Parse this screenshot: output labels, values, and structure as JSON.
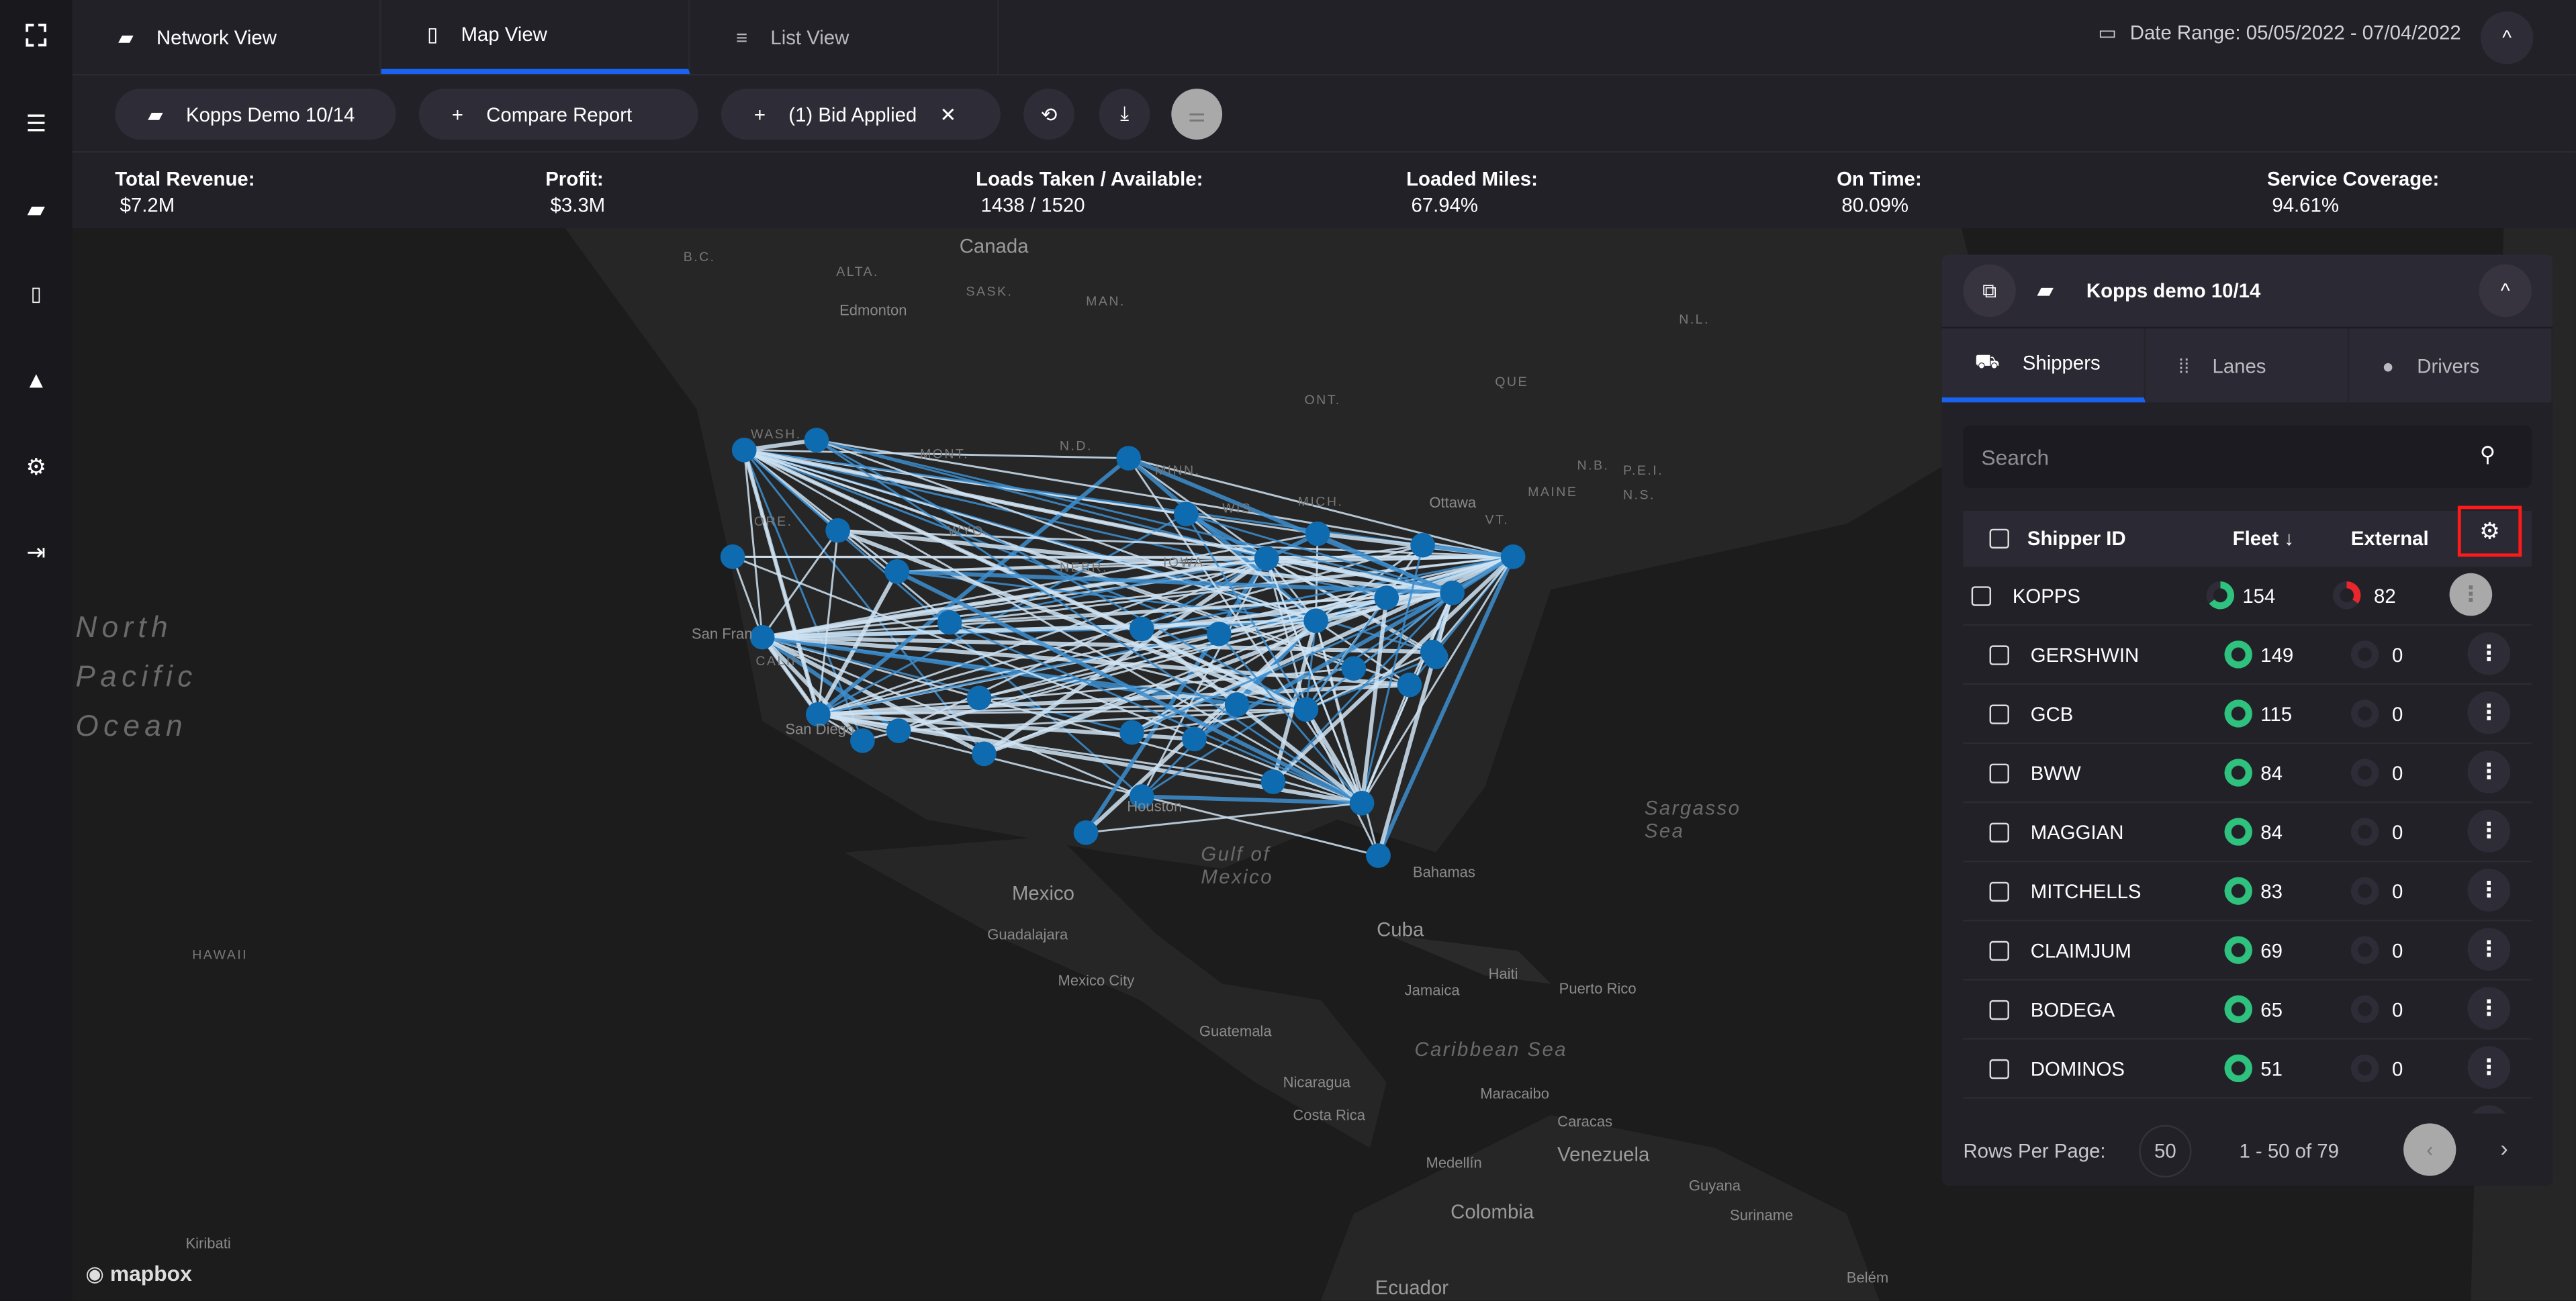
{
  "sidebar": {
    "items": [
      {
        "icon": "logo-icon"
      },
      {
        "icon": "menu-icon"
      },
      {
        "icon": "folder-icon"
      },
      {
        "icon": "document-dollar-icon"
      },
      {
        "icon": "warning-triangle-icon"
      },
      {
        "icon": "gear-icon"
      },
      {
        "icon": "logout-icon"
      }
    ]
  },
  "tabs": [
    {
      "label": "Network View",
      "icon": "folder-icon"
    },
    {
      "label": "Map View",
      "icon": "map-icon",
      "active": true
    },
    {
      "label": "List View",
      "icon": "list-icon"
    }
  ],
  "date_range": "Date Range: 05/05/2022 - 07/04/2022",
  "toolbar": {
    "report": "Kopps Demo 10/14",
    "compare": "Compare Report",
    "bid": "(1) Bid Applied"
  },
  "stats": [
    {
      "label": "Total Revenue:",
      "value": "$7.2M"
    },
    {
      "label": "Profit:",
      "value": "$3.3M"
    },
    {
      "label": "Loads Taken / Available:",
      "value": "1438 / 1520"
    },
    {
      "label": "Loaded Miles:",
      "value": "67.94%"
    },
    {
      "label": "On Time:",
      "value": "80.09%"
    },
    {
      "label": "Service Coverage:",
      "value": "94.61%"
    }
  ],
  "map": {
    "attribution": "mapbox",
    "node_color": "#0f6bb0",
    "labels": {
      "canada": "Canada",
      "edmonton": "Edmonton",
      "bc": "B.C.",
      "alta": "ALTA.",
      "sask": "SASK.",
      "man": "MAN.",
      "ont": "ONT.",
      "que": "QUE",
      "nl": "N.L.",
      "nb": "N.B.",
      "pei": "P.E.I.",
      "ns": "N.S.",
      "maine": "MAINE",
      "vt": "VT.",
      "ottawa": "Ottawa",
      "wash": "WASH.",
      "ore": "ORE.",
      "mont": "MONT.",
      "wyo": "WYO.",
      "nd": "N.D.",
      "minn": "MINN.",
      "wis": "WIS.",
      "mich": "MICH.",
      "iowa": "IOWA",
      "nebr": "NEBR.",
      "calif": "CALIF.",
      "sanfran": "San Fran",
      "sandiego": "San Diego",
      "houston": "Houston",
      "pacific": "North\nPacific\nOcean",
      "hawaii": "HAWAII",
      "gulf": "Gulf of\nMexico",
      "sargasso": "Sargasso\nSea",
      "bahamas": "Bahamas",
      "mexico": "Mexico",
      "guadalajara": "Guadalajara",
      "mexicocity": "Mexico City",
      "cuba": "Cuba",
      "jamaica": "Jamaica",
      "haiti": "Haiti",
      "puertorico": "Puerto Rico",
      "caribbean": "Caribbean Sea",
      "guatemala": "Guatemala",
      "nicaragua": "Nicaragua",
      "costarica": "Costa Rica",
      "maracaibo": "Maracaibo",
      "caracas": "Caracas",
      "venezuela": "Venezuela",
      "guyana": "Guyana",
      "suriname": "Suriname",
      "medellin": "Medellín",
      "colombia": "Colombia",
      "ecuador": "Ecuador",
      "belem": "Belém",
      "kiribati": "Kiribati"
    }
  },
  "panel": {
    "title": "Kopps demo 10/14",
    "tabs": [
      {
        "label": "Shippers",
        "icon": "truck-icon",
        "active": true
      },
      {
        "label": "Lanes",
        "icon": "lanes-icon"
      },
      {
        "label": "Drivers",
        "icon": "person-icon"
      }
    ],
    "search_placeholder": "Search",
    "columns": {
      "id": "Shipper ID",
      "fleet": "Fleet ↓",
      "external": "External"
    },
    "colors": {
      "fleet": "#2ec27e",
      "external": "#e8262b",
      "empty": "#2e2c36",
      "highlight": "#ff1a1a"
    },
    "rows": [
      {
        "id": "KOPPS",
        "fleet": "154",
        "external": "82",
        "fleet_fill": 0.65,
        "ext_fill": 0.35,
        "selected": true
      },
      {
        "id": "GERSHWIN",
        "fleet": "149",
        "external": "0",
        "fleet_fill": 1,
        "ext_fill": 0
      },
      {
        "id": "GCB",
        "fleet": "115",
        "external": "0",
        "fleet_fill": 1,
        "ext_fill": 0
      },
      {
        "id": "BWW",
        "fleet": "84",
        "external": "0",
        "fleet_fill": 1,
        "ext_fill": 0
      },
      {
        "id": "MAGGIAN",
        "fleet": "84",
        "external": "0",
        "fleet_fill": 1,
        "ext_fill": 0
      },
      {
        "id": "MITCHELLS",
        "fleet": "83",
        "external": "0",
        "fleet_fill": 1,
        "ext_fill": 0
      },
      {
        "id": "CLAIMJUM",
        "fleet": "69",
        "external": "0",
        "fleet_fill": 1,
        "ext_fill": 0
      },
      {
        "id": "BODEGA",
        "fleet": "65",
        "external": "0",
        "fleet_fill": 1,
        "ext_fill": 0
      },
      {
        "id": "DOMINOS",
        "fleet": "51",
        "external": "0",
        "fleet_fill": 1,
        "ext_fill": 0
      }
    ],
    "footer": {
      "rows_label": "Rows Per Page:",
      "rows_value": "50",
      "range": "1 - 50 of 79"
    }
  }
}
